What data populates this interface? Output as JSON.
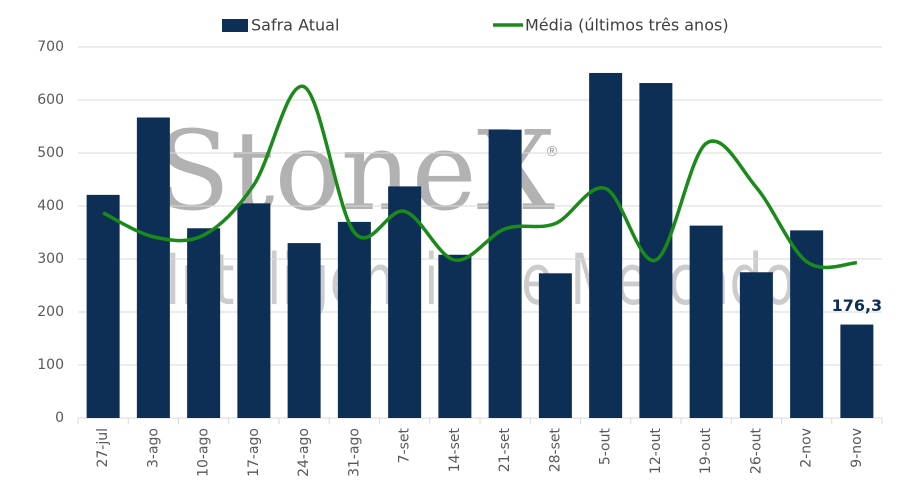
{
  "chart_data": {
    "type": "bar",
    "watermark": [
      "StoneX",
      "Inteligência de Mercado"
    ],
    "categories": [
      "27-jul",
      "3-ago",
      "10-ago",
      "17-ago",
      "24-ago",
      "31-ago",
      "7-set",
      "14-set",
      "21-set",
      "28-set",
      "5-out",
      "12-out",
      "19-out",
      "26-out",
      "2-nov",
      "9-nov"
    ],
    "series": [
      {
        "name": "Safra Atual",
        "type": "bar",
        "color": "#0d2f55",
        "values": [
          421,
          567,
          358,
          405,
          330,
          370,
          437,
          308,
          544,
          273,
          651,
          632,
          363,
          275,
          354,
          176.3
        ],
        "value_labels": [
          null,
          null,
          null,
          null,
          null,
          null,
          null,
          null,
          null,
          null,
          null,
          null,
          null,
          null,
          null,
          "176,3"
        ]
      },
      {
        "name": "Média (últimos três anos)",
        "type": "line",
        "color": "#1a8a1a",
        "values": [
          387,
          342,
          345,
          440,
          625,
          350,
          390,
          298,
          357,
          367,
          433,
          298,
          518,
          435,
          295,
          293
        ]
      }
    ],
    "ylim": [
      0,
      700
    ],
    "yticks": [
      0,
      100,
      200,
      300,
      400,
      500,
      600,
      700
    ],
    "grid": true,
    "legend": "top"
  }
}
